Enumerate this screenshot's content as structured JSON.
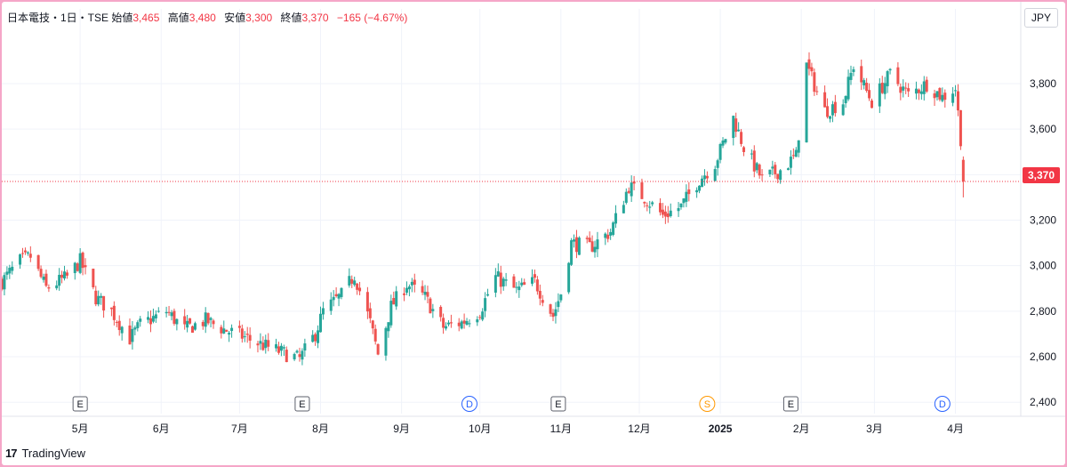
{
  "legend": {
    "symbol": "日本電技・1日・TSE",
    "open_label": "始値",
    "open": "3,465",
    "high_label": "高値",
    "high": "3,480",
    "low_label": "安値",
    "low": "3,300",
    "close_label": "終値",
    "close": "3,370",
    "change": "−165 (−4.67%)"
  },
  "currency": "JPY",
  "last_price_label": "3,370",
  "brand": {
    "logo": "17",
    "name": "TradingView"
  },
  "colors": {
    "up": "#26a69a",
    "down": "#ef5350",
    "grid": "#f0f3fa",
    "last": "#f23645",
    "event_blue": "#2962ff",
    "event_orange": "#ff9800"
  },
  "chart_data": {
    "type": "candlestick",
    "y_axis": {
      "min": 2350,
      "max": 4050,
      "ticks": [
        2400,
        2600,
        2800,
        3000,
        3200,
        3400,
        3600,
        3800
      ],
      "tick_labels": [
        "2,400",
        "2,600",
        "2,800",
        "3,000",
        "3,200",
        "3,400",
        "3,600",
        "3,800"
      ],
      "position": "right"
    },
    "x_axis": {
      "ticks": [
        {
          "label": "5月",
          "date": "2024-05-01"
        },
        {
          "label": "6月",
          "date": "2024-06-01"
        },
        {
          "label": "7月",
          "date": "2024-07-01"
        },
        {
          "label": "8月",
          "date": "2024-08-01"
        },
        {
          "label": "9月",
          "date": "2024-09-01"
        },
        {
          "label": "10月",
          "date": "2024-10-01"
        },
        {
          "label": "11月",
          "date": "2024-11-01"
        },
        {
          "label": "12月",
          "date": "2024-12-01"
        },
        {
          "label": "2025",
          "date": "2025-01-01",
          "bold": true
        },
        {
          "label": "2月",
          "date": "2025-02-01"
        },
        {
          "label": "3月",
          "date": "2025-03-01"
        },
        {
          "label": "4月",
          "date": "2025-04-01"
        }
      ]
    },
    "last_price": 3370,
    "events": [
      {
        "type": "E",
        "date": "2024-05-01"
      },
      {
        "type": "E",
        "date": "2024-07-25"
      },
      {
        "type": "D",
        "date": "2024-09-27"
      },
      {
        "type": "E",
        "date": "2024-10-31"
      },
      {
        "type": "S",
        "date": "2024-12-27"
      },
      {
        "type": "E",
        "date": "2025-01-28"
      },
      {
        "type": "D",
        "date": "2025-03-27"
      }
    ],
    "anchors": [
      [
        "2024-04-01",
        2930
      ],
      [
        "2024-04-08",
        3020
      ],
      [
        "2024-04-12",
        3040
      ],
      [
        "2024-04-18",
        2900
      ],
      [
        "2024-04-26",
        2950
      ],
      [
        "2024-05-01",
        3020
      ],
      [
        "2024-05-07",
        2860
      ],
      [
        "2024-05-13",
        2800
      ],
      [
        "2024-05-20",
        2680
      ],
      [
        "2024-05-24",
        2740
      ],
      [
        "2024-06-03",
        2800
      ],
      [
        "2024-06-10",
        2720
      ],
      [
        "2024-06-18",
        2760
      ],
      [
        "2024-06-25",
        2720
      ],
      [
        "2024-07-02",
        2690
      ],
      [
        "2024-07-10",
        2650
      ],
      [
        "2024-07-17",
        2620
      ],
      [
        "2024-07-24",
        2590
      ],
      [
        "2024-07-30",
        2700
      ],
      [
        "2024-08-02",
        2800
      ],
      [
        "2024-08-09",
        2870
      ],
      [
        "2024-08-14",
        2960
      ],
      [
        "2024-08-20",
        2750
      ],
      [
        "2024-08-23",
        2610
      ],
      [
        "2024-08-28",
        2820
      ],
      [
        "2024-09-03",
        2920
      ],
      [
        "2024-09-10",
        2860
      ],
      [
        "2024-09-17",
        2730
      ],
      [
        "2024-09-24",
        2750
      ],
      [
        "2024-10-01",
        2800
      ],
      [
        "2024-10-07",
        2950
      ],
      [
        "2024-10-15",
        2890
      ],
      [
        "2024-10-22",
        2930
      ],
      [
        "2024-10-29",
        2780
      ],
      [
        "2024-11-01",
        2880
      ],
      [
        "2024-11-05",
        3100
      ],
      [
        "2024-11-12",
        3080
      ],
      [
        "2024-11-20",
        3150
      ],
      [
        "2024-11-27",
        3350
      ],
      [
        "2024-12-03",
        3300
      ],
      [
        "2024-12-10",
        3220
      ],
      [
        "2024-12-17",
        3260
      ],
      [
        "2024-12-24",
        3380
      ],
      [
        "2024-12-30",
        3450
      ],
      [
        "2025-01-06",
        3650
      ],
      [
        "2025-01-10",
        3520
      ],
      [
        "2025-01-17",
        3380
      ],
      [
        "2025-01-24",
        3420
      ],
      [
        "2025-01-30",
        3480
      ],
      [
        "2025-02-03",
        3880
      ],
      [
        "2025-02-10",
        3680
      ],
      [
        "2025-02-17",
        3720
      ],
      [
        "2025-02-21",
        3880
      ],
      [
        "2025-02-28",
        3720
      ],
      [
        "2025-03-07",
        3840
      ],
      [
        "2025-03-14",
        3750
      ],
      [
        "2025-03-21",
        3800
      ],
      [
        "2025-03-27",
        3740
      ],
      [
        "2025-04-01",
        3780
      ],
      [
        "2025-04-03",
        3560
      ],
      [
        "2025-04-04",
        3370
      ]
    ]
  }
}
